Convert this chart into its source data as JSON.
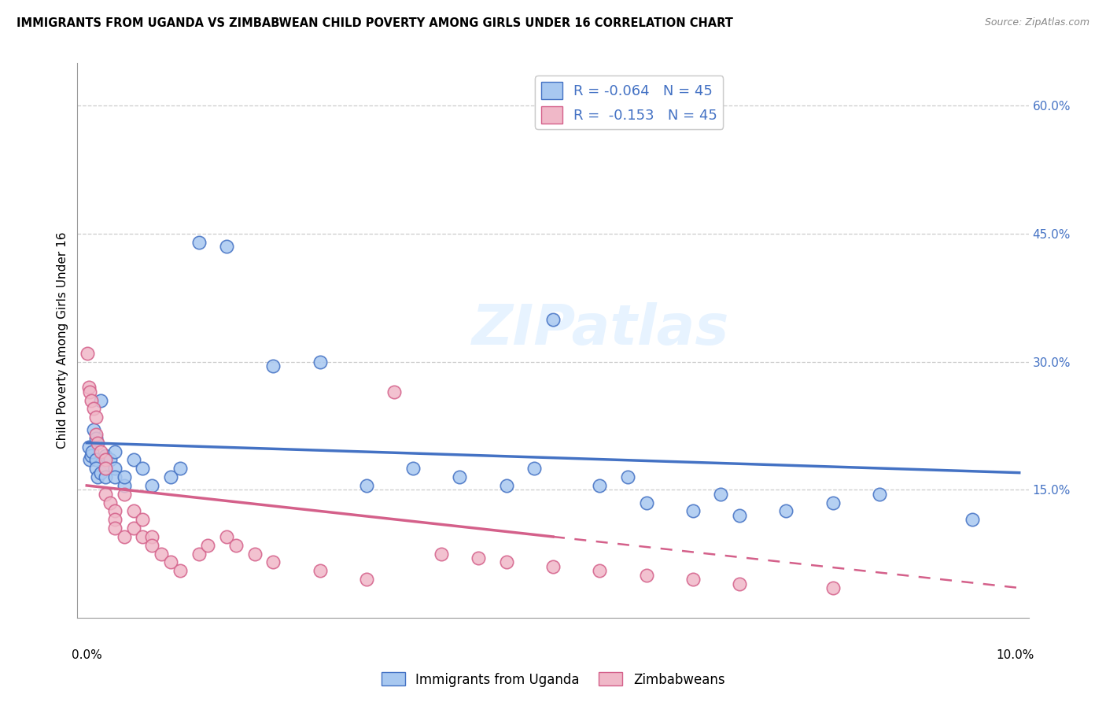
{
  "title": "IMMIGRANTS FROM UGANDA VS ZIMBABWEAN CHILD POVERTY AMONG GIRLS UNDER 16 CORRELATION CHART",
  "source": "Source: ZipAtlas.com",
  "ylabel": "Child Poverty Among Girls Under 16",
  "y_ticks": [
    0.15,
    0.3,
    0.45,
    0.6
  ],
  "y_tick_labels": [
    "15.0%",
    "30.0%",
    "45.0%",
    "60.0%"
  ],
  "x_min": 0.0,
  "x_max": 0.1,
  "y_min": 0.0,
  "y_max": 0.65,
  "legend_r1": "-0.064",
  "legend_n1": "45",
  "legend_r2": "-0.153",
  "legend_n2": "45",
  "color_uganda": "#a8c8f0",
  "color_zimbabwe": "#f0b8c8",
  "color_line_uganda": "#4472c4",
  "color_line_zimbabwe": "#d4608a",
  "color_axis_text": "#4472c4",
  "watermark_text": "ZIPatlas",
  "uganda_x": [
    0.0002,
    0.0003,
    0.0005,
    0.0006,
    0.0007,
    0.001,
    0.001,
    0.001,
    0.0012,
    0.0015,
    0.0015,
    0.002,
    0.002,
    0.002,
    0.0025,
    0.003,
    0.003,
    0.003,
    0.004,
    0.004,
    0.005,
    0.006,
    0.007,
    0.009,
    0.01,
    0.012,
    0.015,
    0.02,
    0.025,
    0.03,
    0.035,
    0.04,
    0.045,
    0.048,
    0.05,
    0.055,
    0.058,
    0.06,
    0.065,
    0.068,
    0.07,
    0.075,
    0.08,
    0.085,
    0.095
  ],
  "uganda_y": [
    0.2,
    0.185,
    0.19,
    0.195,
    0.22,
    0.185,
    0.175,
    0.21,
    0.165,
    0.17,
    0.255,
    0.19,
    0.175,
    0.165,
    0.185,
    0.195,
    0.175,
    0.165,
    0.155,
    0.165,
    0.185,
    0.175,
    0.155,
    0.165,
    0.175,
    0.44,
    0.435,
    0.295,
    0.3,
    0.155,
    0.175,
    0.165,
    0.155,
    0.175,
    0.35,
    0.155,
    0.165,
    0.135,
    0.125,
    0.145,
    0.12,
    0.125,
    0.135,
    0.145,
    0.115
  ],
  "zimbabwe_x": [
    0.0001,
    0.0002,
    0.0003,
    0.0005,
    0.0007,
    0.001,
    0.001,
    0.0012,
    0.0015,
    0.002,
    0.002,
    0.002,
    0.0025,
    0.003,
    0.003,
    0.003,
    0.004,
    0.004,
    0.005,
    0.005,
    0.006,
    0.006,
    0.007,
    0.007,
    0.008,
    0.009,
    0.01,
    0.012,
    0.013,
    0.015,
    0.016,
    0.018,
    0.02,
    0.025,
    0.03,
    0.033,
    0.038,
    0.042,
    0.045,
    0.05,
    0.055,
    0.06,
    0.065,
    0.07,
    0.08
  ],
  "zimbabwe_y": [
    0.31,
    0.27,
    0.265,
    0.255,
    0.245,
    0.235,
    0.215,
    0.205,
    0.195,
    0.185,
    0.175,
    0.145,
    0.135,
    0.125,
    0.115,
    0.105,
    0.095,
    0.145,
    0.125,
    0.105,
    0.095,
    0.115,
    0.095,
    0.085,
    0.075,
    0.065,
    0.055,
    0.075,
    0.085,
    0.095,
    0.085,
    0.075,
    0.065,
    0.055,
    0.045,
    0.265,
    0.075,
    0.07,
    0.065,
    0.06,
    0.055,
    0.05,
    0.045,
    0.04,
    0.035
  ]
}
